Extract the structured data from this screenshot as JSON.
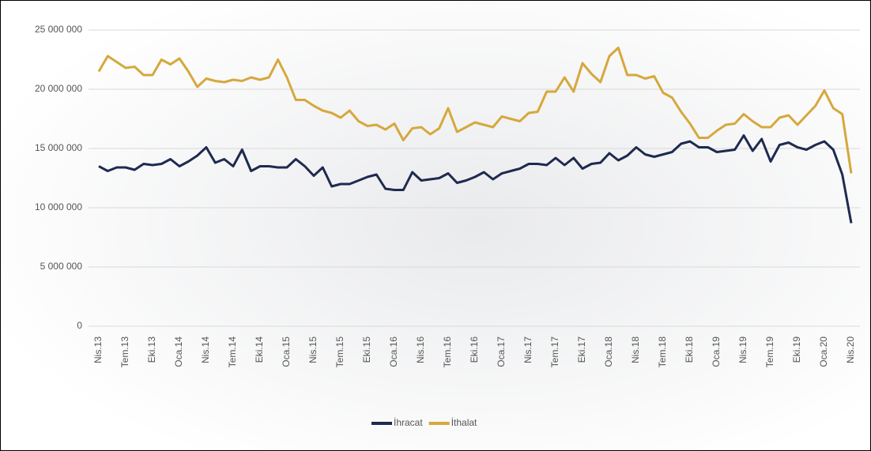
{
  "chart_data": {
    "type": "line",
    "categories": [
      "Nis.13",
      null,
      null,
      "Tem.13",
      null,
      null,
      "Eki.13",
      null,
      null,
      "Oca.14",
      null,
      null,
      "Nis.14",
      null,
      null,
      "Tem.14",
      null,
      null,
      "Eki.14",
      null,
      null,
      "Oca.15",
      null,
      null,
      "Nis.15",
      null,
      null,
      "Tem.15",
      null,
      null,
      "Eki.15",
      null,
      null,
      "Oca.16",
      null,
      null,
      "Nis.16",
      null,
      null,
      "Tem.16",
      null,
      null,
      "Eki.16",
      null,
      null,
      "Oca.17",
      null,
      null,
      "Nis.17",
      null,
      null,
      "Tem.17",
      null,
      null,
      "Eki.17",
      null,
      null,
      "Oca.18",
      null,
      null,
      "Nis.18",
      null,
      null,
      "Tem.18",
      null,
      null,
      "Eki.18",
      null,
      null,
      "Oca.19",
      null,
      null,
      "Nis.19",
      null,
      null,
      "Tem.19",
      null,
      null,
      "Eki.19",
      null,
      null,
      "Oca.20",
      null,
      null,
      "Nis.20"
    ],
    "series": [
      {
        "name": "İhracat",
        "color": "#1f2a4f",
        "values": [
          13500000,
          13100000,
          13400000,
          13400000,
          13200000,
          13700000,
          13600000,
          13700000,
          14100000,
          13500000,
          13900000,
          14400000,
          15100000,
          13800000,
          14100000,
          13500000,
          14900000,
          13100000,
          13500000,
          13500000,
          13400000,
          13400000,
          14100000,
          13500000,
          12700000,
          13400000,
          11800000,
          12000000,
          12000000,
          12300000,
          12600000,
          12800000,
          11600000,
          11500000,
          11500000,
          13000000,
          12300000,
          12400000,
          12500000,
          12900000,
          12100000,
          12300000,
          12600000,
          13000000,
          12400000,
          12900000,
          13100000,
          13300000,
          13700000,
          13700000,
          13600000,
          14200000,
          13600000,
          14200000,
          13300000,
          13700000,
          13800000,
          14600000,
          14000000,
          14400000,
          15100000,
          14500000,
          14300000,
          14500000,
          14700000,
          15400000,
          15600000,
          15100000,
          15100000,
          14700000,
          14800000,
          14900000,
          16100000,
          14800000,
          15800000,
          13900000,
          15300000,
          15500000,
          15100000,
          14900000,
          15300000,
          15600000,
          14900000,
          12800000,
          8700000
        ]
      },
      {
        "name": "İthalat",
        "color": "#d6a83c",
        "values": [
          21500000,
          22800000,
          22300000,
          21800000,
          21900000,
          21200000,
          21200000,
          22500000,
          22100000,
          22600000,
          21500000,
          20200000,
          20900000,
          20700000,
          20600000,
          20800000,
          20700000,
          21000000,
          20800000,
          21000000,
          22500000,
          21000000,
          19100000,
          19100000,
          18600000,
          18200000,
          18000000,
          17600000,
          18200000,
          17300000,
          16900000,
          17000000,
          16600000,
          17100000,
          15700000,
          16700000,
          16800000,
          16200000,
          16700000,
          18400000,
          16400000,
          16800000,
          17200000,
          17000000,
          16800000,
          17700000,
          17500000,
          17300000,
          18000000,
          18100000,
          19800000,
          19800000,
          21000000,
          19800000,
          22200000,
          21300000,
          20600000,
          22800000,
          23500000,
          21200000,
          21200000,
          20900000,
          21100000,
          19700000,
          19300000,
          18100000,
          17100000,
          15900000,
          15900000,
          16500000,
          17000000,
          17100000,
          17900000,
          17300000,
          16800000,
          16800000,
          17600000,
          17800000,
          17000000,
          17800000,
          18600000,
          19900000,
          18400000,
          17900000,
          12900000
        ]
      }
    ],
    "ylim": [
      0,
      25000000
    ],
    "yticks": [
      0,
      {
        "value": 5000000,
        "label": "5 000 000"
      },
      {
        "value": 10000000,
        "label": "10 000 000"
      },
      {
        "value": 15000000,
        "label": "15 000 000"
      },
      {
        "value": 20000000,
        "label": "20 000 000"
      },
      {
        "value": 25000000,
        "label": "25 000 000"
      }
    ],
    "grid": true,
    "legend": "bottom"
  }
}
